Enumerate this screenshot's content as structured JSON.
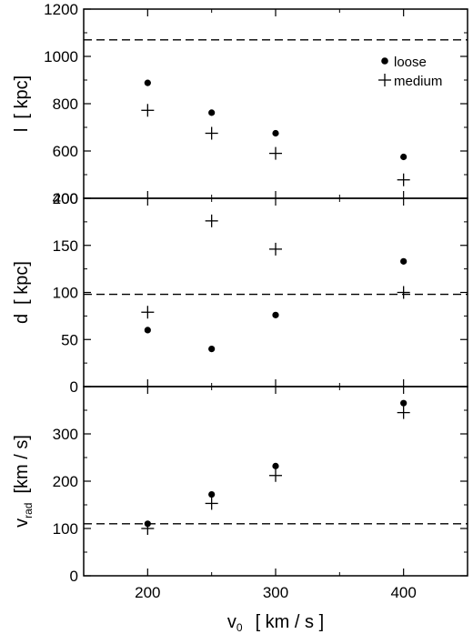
{
  "chart_data": [
    {
      "type": "scatter",
      "title": "",
      "xlabel": "",
      "ylabel": "l",
      "ylabel_unit": "[ kpc]",
      "ylim": [
        400,
        1200
      ],
      "yticks": [
        400,
        600,
        800,
        1000,
        1200
      ],
      "xlim": [
        150,
        450
      ],
      "reference_line": 1070,
      "series": [
        {
          "name": "loose",
          "marker": "dot",
          "x": [
            200,
            250,
            300,
            400
          ],
          "y": [
            888,
            762,
            675,
            575
          ]
        },
        {
          "name": "medium",
          "marker": "plus",
          "x": [
            200,
            250,
            300,
            400
          ],
          "y": [
            772,
            675,
            590,
            478
          ]
        }
      ],
      "legend": {
        "placement": "top-right",
        "entries": [
          "loose",
          "medium"
        ]
      }
    },
    {
      "type": "scatter",
      "title": "",
      "xlabel": "",
      "ylabel": "d",
      "ylabel_unit": "[ kpc]",
      "ylim": [
        0,
        200
      ],
      "yticks": [
        0,
        50,
        100,
        150,
        200
      ],
      "xlim": [
        150,
        450
      ],
      "reference_line": 98,
      "series": [
        {
          "name": "loose",
          "marker": "dot",
          "x": [
            200,
            250,
            300,
            400
          ],
          "y": [
            60,
            40,
            76,
            133
          ]
        },
        {
          "name": "medium",
          "marker": "plus",
          "x": [
            200,
            250,
            300,
            400
          ],
          "y": [
            79,
            176,
            146,
            100
          ]
        }
      ]
    },
    {
      "type": "scatter",
      "title": "",
      "xlabel": "v",
      "xlabel_sub": "0",
      "xlabel_unit": "[ km / s ]",
      "ylabel": "v",
      "ylabel_sub": "rad",
      "ylabel_unit": "[km / s]",
      "ylim": [
        0,
        400
      ],
      "yticks": [
        0,
        100,
        200,
        300
      ],
      "xlim": [
        150,
        450
      ],
      "xticks": [
        200,
        300,
        400
      ],
      "reference_line": 110,
      "series": [
        {
          "name": "loose",
          "marker": "dot",
          "x": [
            200,
            250,
            300,
            400
          ],
          "y": [
            110,
            172,
            232,
            365
          ]
        },
        {
          "name": "medium",
          "marker": "plus",
          "x": [
            200,
            250,
            300,
            400
          ],
          "y": [
            100,
            153,
            212,
            345
          ]
        }
      ]
    }
  ]
}
